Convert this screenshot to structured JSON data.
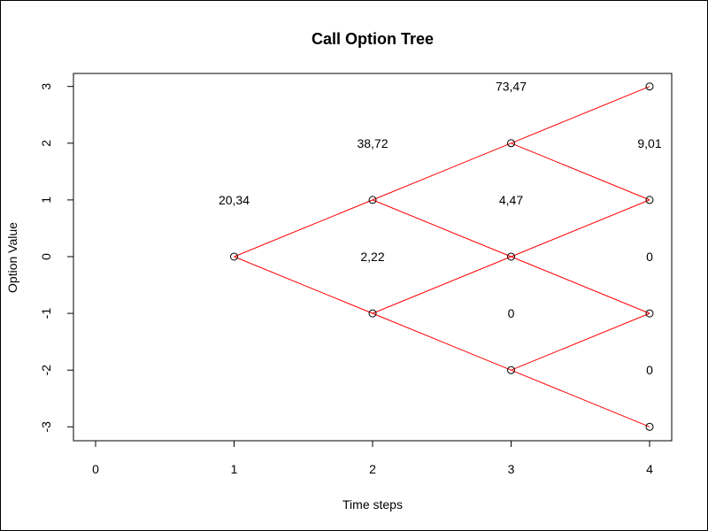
{
  "chart_data": {
    "type": "scatter",
    "title": "Call Option Tree",
    "xlabel": "Time steps",
    "ylabel": "Option Value",
    "xlim": [
      0,
      4
    ],
    "ylim": [
      -3,
      3
    ],
    "x_ticks": [
      0,
      1,
      2,
      3,
      4
    ],
    "y_ticks": [
      -3,
      -2,
      -1,
      0,
      1,
      2,
      3
    ],
    "nodes": [
      {
        "x": 1,
        "y": 0
      },
      {
        "x": 2,
        "y": 1
      },
      {
        "x": 2,
        "y": -1
      },
      {
        "x": 3,
        "y": 2
      },
      {
        "x": 3,
        "y": 0
      },
      {
        "x": 3,
        "y": -2
      },
      {
        "x": 4,
        "y": 3
      },
      {
        "x": 4,
        "y": 1
      },
      {
        "x": 4,
        "y": -1
      },
      {
        "x": 4,
        "y": -3
      }
    ],
    "edges": [
      [
        1,
        0,
        2,
        1
      ],
      [
        1,
        0,
        2,
        -1
      ],
      [
        2,
        1,
        3,
        2
      ],
      [
        2,
        1,
        3,
        0
      ],
      [
        2,
        -1,
        3,
        0
      ],
      [
        2,
        -1,
        3,
        -2
      ],
      [
        3,
        2,
        4,
        3
      ],
      [
        3,
        2,
        4,
        1
      ],
      [
        3,
        0,
        4,
        1
      ],
      [
        3,
        0,
        4,
        -1
      ],
      [
        3,
        -2,
        4,
        -1
      ],
      [
        3,
        -2,
        4,
        -3
      ]
    ],
    "value_labels": [
      {
        "x": 1,
        "y": 1,
        "text": "20,34"
      },
      {
        "x": 2,
        "y": 2,
        "text": "38,72"
      },
      {
        "x": 2,
        "y": 0,
        "text": "2,22"
      },
      {
        "x": 3,
        "y": 3,
        "text": "73,47"
      },
      {
        "x": 3,
        "y": 1,
        "text": "4,47"
      },
      {
        "x": 3,
        "y": -1,
        "text": "0"
      },
      {
        "x": 4,
        "y": 2,
        "text": "9,01"
      },
      {
        "x": 4,
        "y": 0,
        "text": "0"
      },
      {
        "x": 4,
        "y": -2,
        "text": "0"
      }
    ],
    "colors": {
      "edge": "#ff0000",
      "node": "#000000"
    },
    "grid": false
  }
}
